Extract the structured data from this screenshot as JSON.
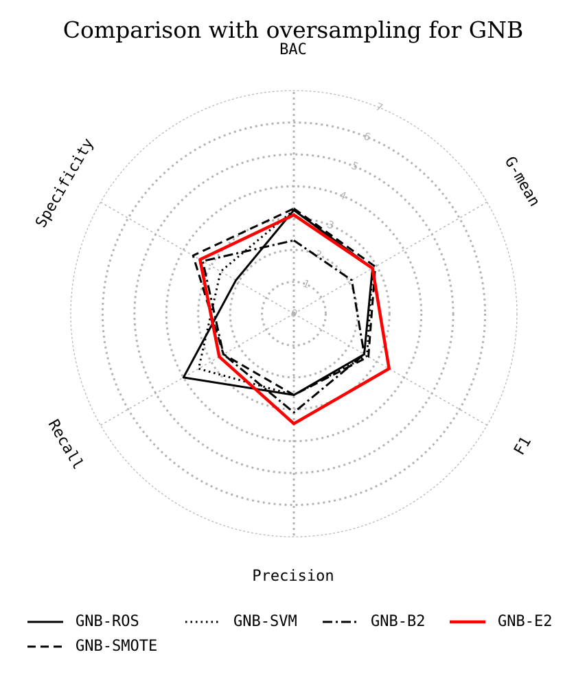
{
  "chart_data": {
    "type": "radar",
    "title": "Comparison with oversampling for GNB",
    "axes": [
      "BAC",
      "G-mean",
      "F1",
      "Precision",
      "Recall",
      "Specificity"
    ],
    "rlim": [
      0,
      7
    ],
    "rticks": [
      "0",
      "1",
      "2",
      "3",
      "4",
      "5",
      "6",
      "7"
    ],
    "grid": true,
    "legend_position": "bottom",
    "series": [
      {
        "name": "GNB-ROS",
        "style": "solid",
        "color": "#000000",
        "values": [
          3.25,
          2.85,
          2.55,
          2.55,
          4.0,
          2.1
        ]
      },
      {
        "name": "GNB-SMOTE",
        "style": "dashed",
        "color": "#000000",
        "values": [
          3.3,
          2.95,
          2.7,
          2.55,
          2.55,
          3.65
        ]
      },
      {
        "name": "GNB-SVM",
        "style": "dotted",
        "color": "#000000",
        "values": [
          3.25,
          2.85,
          2.65,
          2.55,
          3.45,
          2.65
        ]
      },
      {
        "name": "GNB-B2",
        "style": "dashdot",
        "color": "#000000",
        "values": [
          2.3,
          2.1,
          2.55,
          3.1,
          2.55,
          3.3
        ]
      },
      {
        "name": "GNB-E2",
        "style": "solid",
        "color": "#ff0000",
        "values": [
          3.1,
          2.85,
          3.45,
          3.45,
          2.7,
          3.4
        ]
      }
    ]
  }
}
